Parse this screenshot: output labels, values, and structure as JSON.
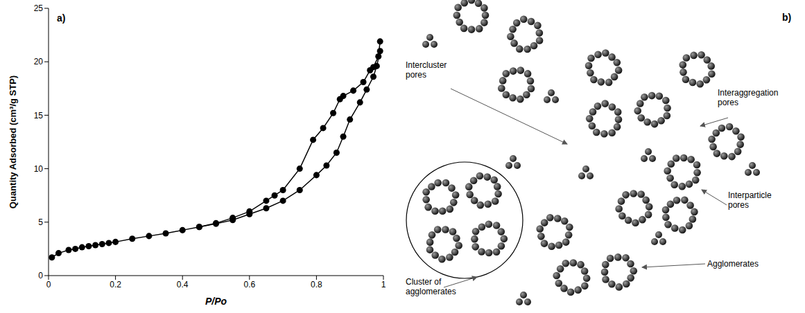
{
  "chart_data": {
    "type": "line",
    "panel_label": "a)",
    "x_label": "P/Po",
    "y_label": "Quantity Adsorbed (cm³/g STP)",
    "xlim": [
      0,
      1
    ],
    "xticks": [
      0,
      0.2,
      0.4,
      0.6,
      0.8,
      1
    ],
    "ylim": [
      0,
      25
    ],
    "yticks": [
      0,
      5,
      10,
      15,
      20,
      25
    ],
    "grid": false,
    "series": [
      {
        "color": "#000000",
        "marker": "circle",
        "line_style": "solid",
        "x": [
          0.01,
          0.03,
          0.06,
          0.08,
          0.1,
          0.12,
          0.14,
          0.16,
          0.18,
          0.2,
          0.25,
          0.3,
          0.35,
          0.4,
          0.45,
          0.5,
          0.55,
          0.6,
          0.65,
          0.7,
          0.75,
          0.8,
          0.83,
          0.86,
          0.88,
          0.9,
          0.93,
          0.95,
          0.97,
          0.98,
          0.99
        ],
        "values": [
          1.7,
          2.1,
          2.4,
          2.5,
          2.65,
          2.75,
          2.85,
          2.95,
          3.05,
          3.15,
          3.45,
          3.7,
          3.95,
          4.25,
          4.55,
          4.85,
          5.2,
          5.75,
          6.3,
          7.0,
          8.0,
          9.4,
          10.3,
          11.5,
          13.0,
          14.6,
          16.2,
          17.4,
          18.6,
          19.6,
          21.0
        ]
      },
      {
        "color": "#000000",
        "marker": "circle",
        "line_style": "solid",
        "x": [
          0.99,
          0.985,
          0.97,
          0.96,
          0.94,
          0.91,
          0.88,
          0.87,
          0.85,
          0.82,
          0.79,
          0.75,
          0.7,
          0.675,
          0.65,
          0.6,
          0.55,
          0.5,
          0.45
        ],
        "values": [
          21.9,
          20.5,
          19.5,
          19.2,
          18.1,
          17.3,
          16.8,
          16.5,
          15.2,
          13.8,
          12.7,
          10.0,
          8.0,
          7.5,
          7.0,
          6.0,
          5.4,
          4.9,
          4.55
        ]
      }
    ]
  },
  "diagram": {
    "panel_label": "b)",
    "labels": [
      {
        "text": "Intercluster pores"
      },
      {
        "text": "Interaggregation pores"
      },
      {
        "text": "Interparticle pores"
      },
      {
        "text": "Agglomerates"
      },
      {
        "text": "Cluster of agglomerates"
      }
    ]
  }
}
